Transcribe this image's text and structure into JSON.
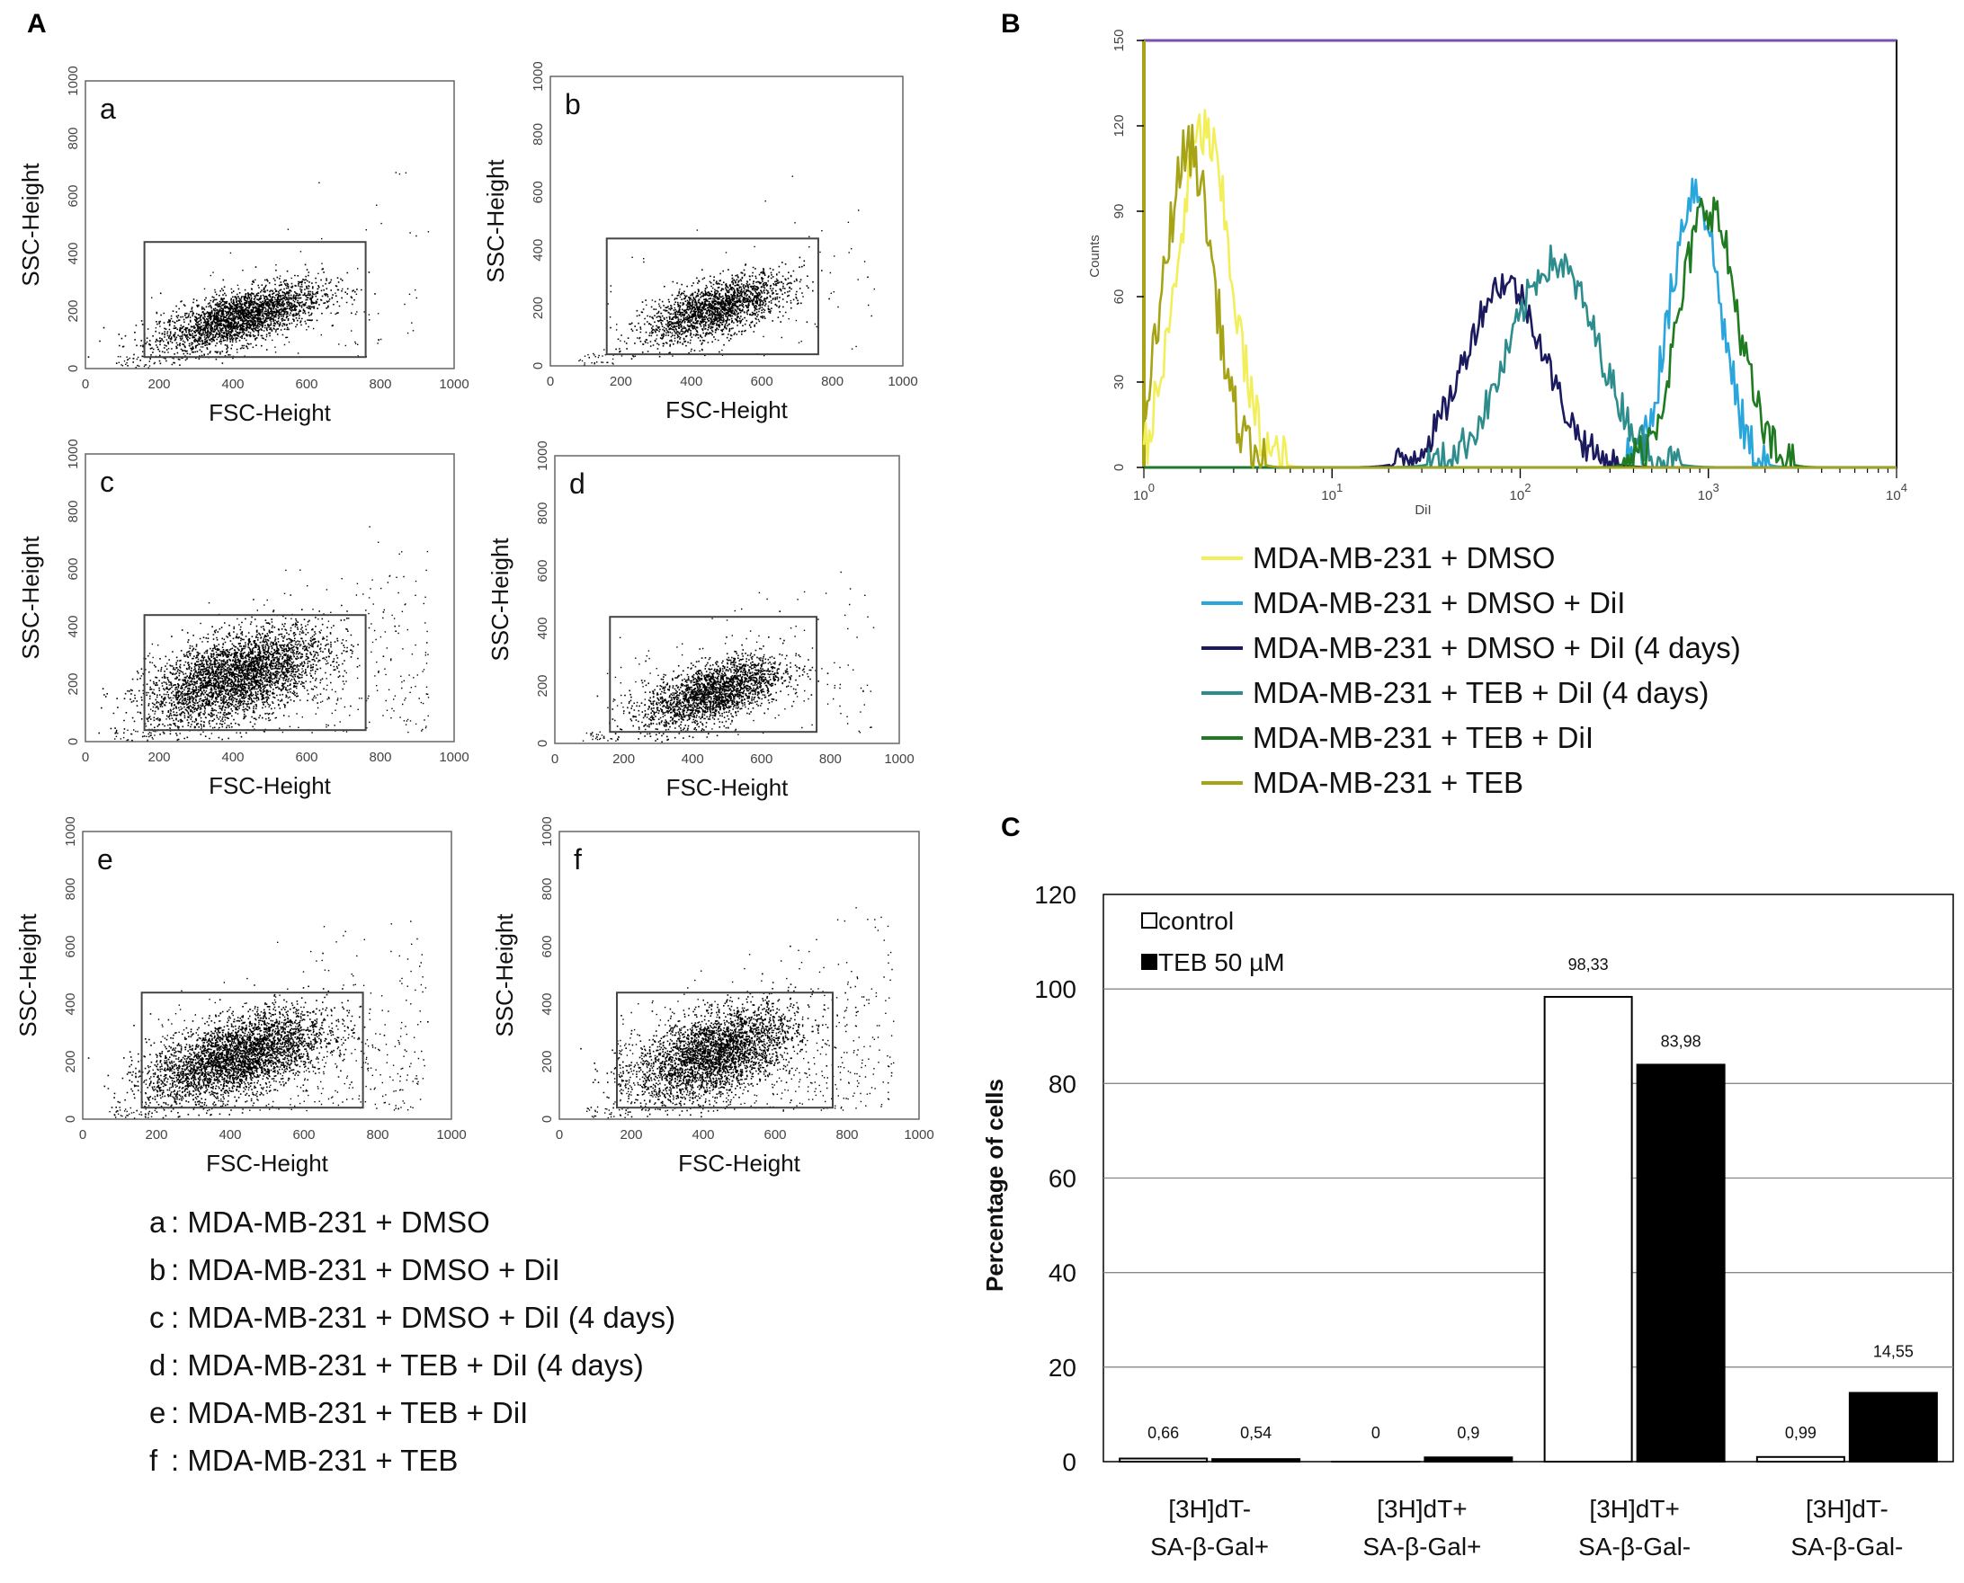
{
  "panel_letters": {
    "A": "A",
    "B": "B",
    "C": "C"
  },
  "chart_data": [
    {
      "type": "scatter",
      "panel": "A",
      "xlabel": "FSC-Height",
      "ylabel": "SSC-Height",
      "xlim": [
        0,
        1000
      ],
      "ylim": [
        0,
        1000
      ],
      "xticks": [
        "0",
        "200",
        "400",
        "600",
        "800",
        "1000"
      ],
      "yticks": [
        "0",
        "200",
        "400",
        "600",
        "800",
        "1000"
      ],
      "gate": {
        "x": [
          160,
          760
        ],
        "y": [
          40,
          440
        ]
      },
      "subplots": [
        {
          "id": "a",
          "label": "a",
          "center": [
            420,
            180
          ],
          "spread": [
            110,
            45
          ],
          "n": 2600,
          "outliers": 120
        },
        {
          "id": "b",
          "label": "b",
          "center": [
            470,
            200
          ],
          "spread": [
            100,
            45
          ],
          "n": 2000,
          "outliers": 90
        },
        {
          "id": "c",
          "label": "c",
          "center": [
            410,
            230
          ],
          "spread": [
            120,
            70
          ],
          "n": 3400,
          "outliers": 420
        },
        {
          "id": "d",
          "label": "d",
          "center": [
            460,
            180
          ],
          "spread": [
            100,
            50
          ],
          "n": 2200,
          "outliers": 170
        },
        {
          "id": "e",
          "label": "e",
          "center": [
            420,
            220
          ],
          "spread": [
            120,
            65
          ],
          "n": 3400,
          "outliers": 520
        },
        {
          "id": "f",
          "label": "f",
          "center": [
            430,
            230
          ],
          "spread": [
            110,
            70
          ],
          "n": 3000,
          "outliers": 620
        }
      ],
      "legend": [
        {
          "key": "a",
          "text": ": MDA-MB-231 + DMSO"
        },
        {
          "key": "b",
          "text": ": MDA-MB-231 + DMSO + DiI"
        },
        {
          "key": "c",
          "text": ": MDA-MB-231 + DMSO + DiI (4 days)"
        },
        {
          "key": "d",
          "text": ": MDA-MB-231 + TEB + DiI (4 days)"
        },
        {
          "key": "e",
          "text": ": MDA-MB-231 + TEB + DiI"
        },
        {
          "key": "f",
          "text": ": MDA-MB-231 + TEB"
        }
      ]
    },
    {
      "type": "line",
      "panel": "B",
      "xlabel": "DiI",
      "ylabel": "Counts",
      "xscale": "log",
      "xlim": [
        1,
        10000
      ],
      "ylim": [
        0,
        150
      ],
      "xtick_bases": [
        "10",
        "10",
        "10",
        "10",
        "10"
      ],
      "xtick_exps": [
        "0",
        "1",
        "2",
        "3",
        "4"
      ],
      "yticks": [
        "0",
        "30",
        "60",
        "90",
        "120",
        "150"
      ],
      "series": [
        {
          "name": "MDA-MB-231 + DMSO",
          "color": "#f2ef5a",
          "peak_log": 0.32,
          "width_log": 0.14,
          "peak": 118
        },
        {
          "name": "MDA-MB-231 + DMSO + DiI",
          "color": "#2aa6dc",
          "peak_log": 2.93,
          "width_log": 0.13,
          "peak": 98
        },
        {
          "name": "MDA-MB-231 + DMSO + DiI (4 days)",
          "color": "#1b1a5e",
          "peak_log": 1.92,
          "width_log": 0.21,
          "peak": 65
        },
        {
          "name": "MDA-MB-231 + TEB + DiI (4 days)",
          "color": "#2d8c8c",
          "peak_log": 2.18,
          "width_log": 0.23,
          "peak": 72
        },
        {
          "name": "MDA-MB-231 + TEB + DiI",
          "color": "#1f7a22",
          "peak_log": 3.0,
          "width_log": 0.15,
          "peak": 92
        },
        {
          "name": "MDA-MB-231 + TEB",
          "color": "#a6a317",
          "peak_log": 0.24,
          "width_log": 0.13,
          "peak": 112
        }
      ]
    },
    {
      "type": "bar",
      "panel": "C",
      "ylabel": "Percentage of cells",
      "ylim": [
        0,
        120
      ],
      "yticks": [
        "0",
        "20",
        "40",
        "60",
        "80",
        "100",
        "120"
      ],
      "categories": [
        [
          "[3H]dT-",
          "SA-β-Gal+"
        ],
        [
          "[3H]dT+",
          "SA-β-Gal+"
        ],
        [
          "[3H]dT+",
          "SA-β-Gal-"
        ],
        [
          "[3H]dT-",
          "SA-β-Gal-"
        ]
      ],
      "series": [
        {
          "name": "control",
          "color": "#ffffff",
          "values": [
            0.66,
            0,
            98.33,
            0.99
          ],
          "labels": [
            "0,66",
            "0",
            "98,33",
            "0,99"
          ]
        },
        {
          "name": "TEB 50 µM",
          "color": "#000000",
          "values": [
            0.54,
            0.9,
            83.98,
            14.55
          ],
          "labels": [
            "0,54",
            "0,9",
            "83,98",
            "14,55"
          ]
        }
      ]
    }
  ]
}
